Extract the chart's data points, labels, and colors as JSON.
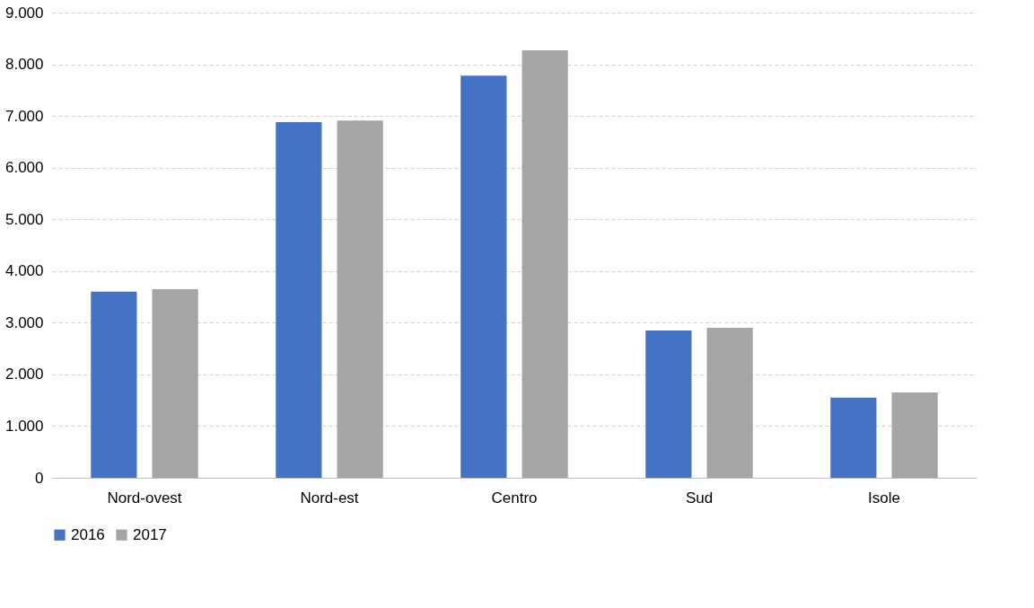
{
  "chart_data": {
    "type": "bar",
    "categories": [
      "Nord-ovest",
      "Nord-est",
      "Centro",
      "Sud",
      "Isole"
    ],
    "series": [
      {
        "name": "2016",
        "color": "#4472c4",
        "values": [
          3600,
          6880,
          7780,
          2850,
          1550
        ]
      },
      {
        "name": "2017",
        "color": "#a5a5a5",
        "values": [
          3650,
          6910,
          8270,
          2900,
          1650
        ]
      }
    ],
    "ylim": [
      0,
      9000
    ],
    "yticks": [
      {
        "value": 0,
        "label": "0"
      },
      {
        "value": 1000,
        "label": "1.000"
      },
      {
        "value": 2000,
        "label": "2.000"
      },
      {
        "value": 3000,
        "label": "3.000"
      },
      {
        "value": 4000,
        "label": "4.000"
      },
      {
        "value": 5000,
        "label": "5.000"
      },
      {
        "value": 6000,
        "label": "6.000"
      },
      {
        "value": 7000,
        "label": "7.000"
      },
      {
        "value": 8000,
        "label": "8.000"
      },
      {
        "value": 9000,
        "label": "9.000"
      }
    ],
    "grid": "y",
    "line_style": "dashed",
    "legend": "bottom"
  }
}
